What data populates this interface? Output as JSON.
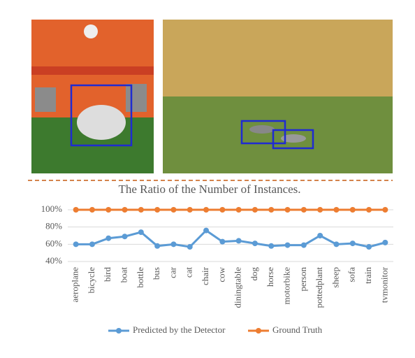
{
  "chart_data": {
    "type": "line",
    "title": "The Ratio of the Number of Instances.",
    "categories": [
      "aeroplane",
      "bicycle",
      "bird",
      "boat",
      "bottle",
      "bus",
      "car",
      "cat",
      "chair",
      "cow",
      "diningtable",
      "dog",
      "horse",
      "motorbike",
      "person",
      "pottedplant",
      "sheep",
      "sofa",
      "train",
      "tvmonitor"
    ],
    "series": [
      {
        "name": "Predicted by the Detector",
        "color": "#5b9bd5",
        "values": [
          60,
          60,
          67,
          69,
          74,
          58,
          60,
          57,
          76,
          63,
          64,
          61,
          58,
          59,
          59,
          70,
          60,
          61,
          57,
          62
        ]
      },
      {
        "name": "Ground Truth",
        "color": "#ed7d31",
        "values": [
          100,
          100,
          100,
          100,
          100,
          100,
          100,
          100,
          100,
          100,
          100,
          100,
          100,
          100,
          100,
          100,
          100,
          100,
          100,
          100
        ]
      }
    ],
    "ylim": [
      40,
      100
    ],
    "yticks": [
      {
        "value": 40,
        "label": "40%"
      },
      {
        "value": 60,
        "label": "60%"
      },
      {
        "value": 80,
        "label": "80%"
      },
      {
        "value": 100,
        "label": "100%"
      }
    ],
    "grid": true,
    "legend": "bottom"
  }
}
